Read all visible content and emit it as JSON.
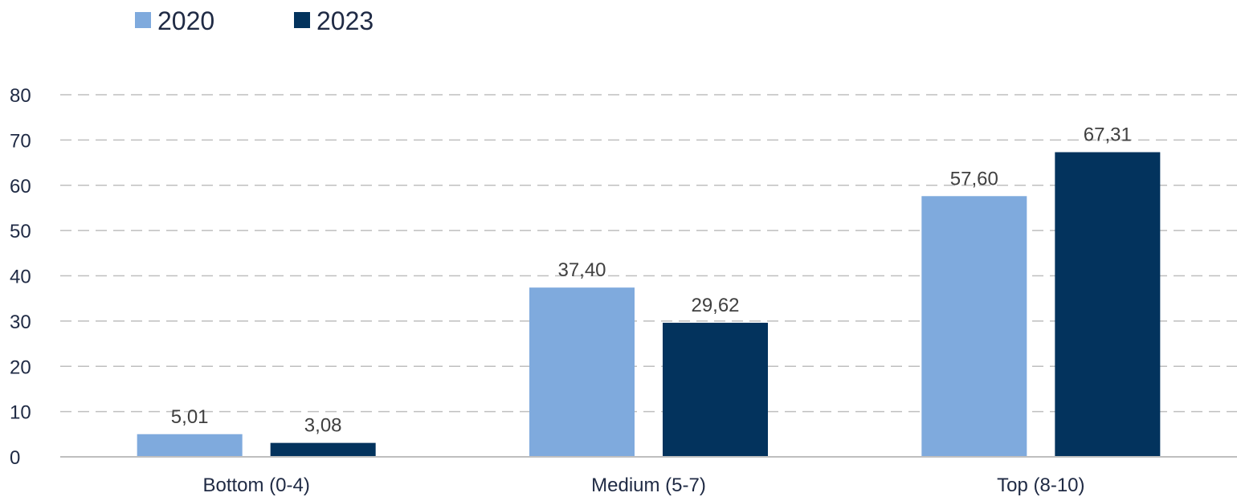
{
  "chart_data": {
    "type": "bar",
    "categories": [
      "Bottom (0-4)",
      "Medium (5-7)",
      "Top (8-10)"
    ],
    "series": [
      {
        "name": "2020",
        "values": [
          5.01,
          37.4,
          57.6
        ],
        "labels": [
          "5,01",
          "37,40",
          "57,60"
        ],
        "color": "#7faadd"
      },
      {
        "name": "2023",
        "values": [
          3.08,
          29.62,
          67.31
        ],
        "labels": [
          "3,08",
          "29,62",
          "67,31"
        ],
        "color": "#03335d"
      }
    ],
    "title": "",
    "xlabel": "",
    "ylabel": "",
    "ylim": [
      0,
      80
    ],
    "yticks": [
      0,
      10,
      20,
      30,
      40,
      50,
      60,
      70,
      80
    ],
    "grid": true,
    "legend": "top-left",
    "colors": {
      "grid": "#bfbfbf",
      "axis": "#bfbfbf"
    }
  }
}
